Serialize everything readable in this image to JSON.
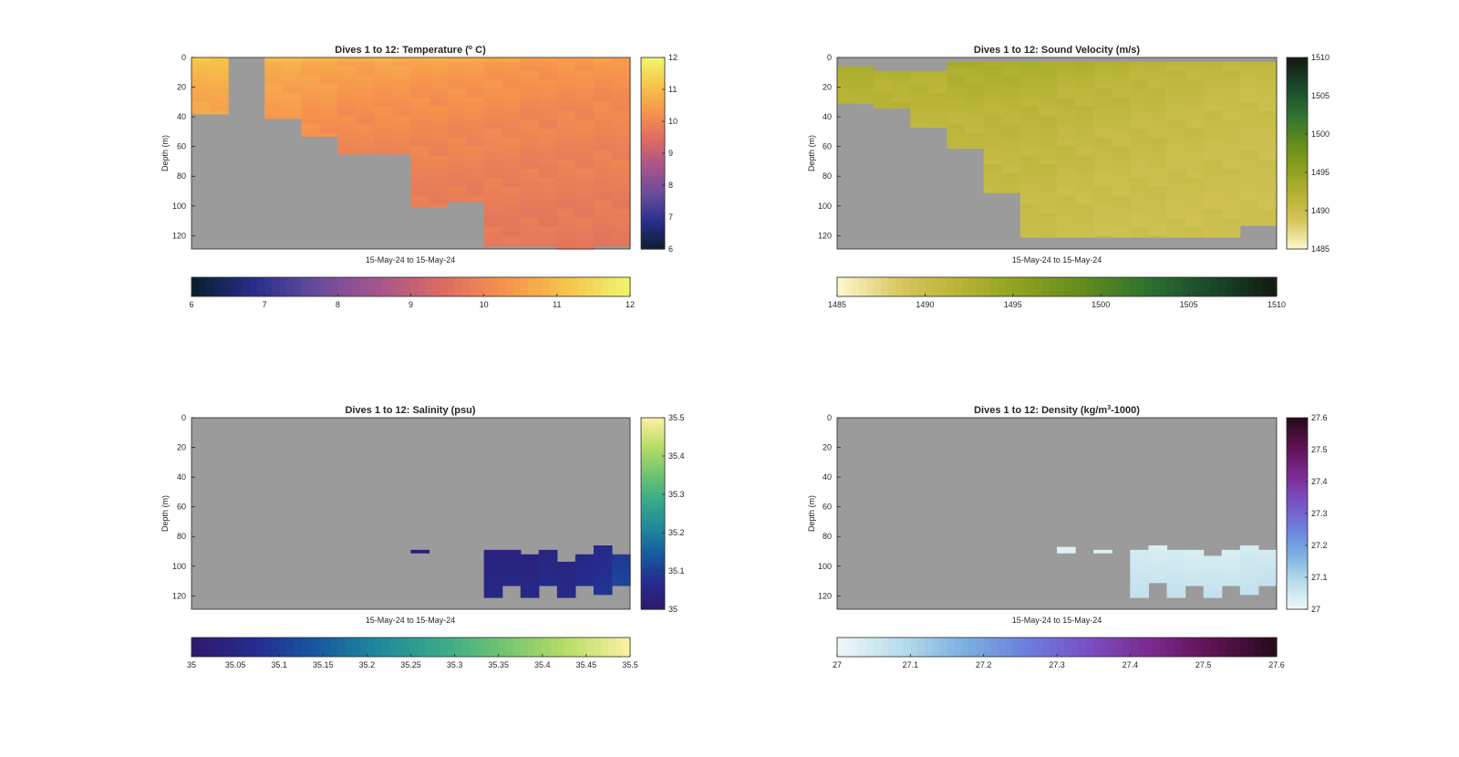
{
  "figure": {
    "background": "#ffffff",
    "nodata_color": "#9b9b9b",
    "depth_ticks": [
      "0",
      "20",
      "40",
      "60",
      "80",
      "100",
      "120"
    ]
  },
  "chart_data": [
    {
      "type": "heatmap",
      "id": "temperature",
      "title_main": "Dives 1 to 12: Temperature (",
      "title_sup": "o",
      "title_end": " C)",
      "ylabel": "Depth (m)",
      "xlabel": "15-May-24 to 15-May-24",
      "x": [
        1,
        2,
        3,
        4,
        5,
        6,
        7,
        8,
        9,
        10,
        11,
        12
      ],
      "ylim": [
        0,
        129
      ],
      "clim": [
        6,
        12
      ],
      "colorbar_ticks": [
        "6",
        "7",
        "8",
        "9",
        "10",
        "11",
        "12"
      ],
      "colormap": [
        "#0b1f33",
        "#2a2f8c",
        "#6a4c9c",
        "#a7558a",
        "#dc6a63",
        "#f6924d",
        "#f6c24a",
        "#eef46a"
      ],
      "profiles": [
        {
          "dive": 1,
          "max_depth": 38,
          "surface": 11.2,
          "bottom": 10.6
        },
        {
          "dive": 2,
          "max_depth": 0,
          "surface": 11.2,
          "bottom": 10.6
        },
        {
          "dive": 3,
          "max_depth": 41,
          "surface": 11.0,
          "bottom": 10.4
        },
        {
          "dive": 4,
          "max_depth": 53,
          "surface": 10.9,
          "bottom": 10.2
        },
        {
          "dive": 5,
          "max_depth": 65,
          "surface": 10.8,
          "bottom": 10.0
        },
        {
          "dive": 6,
          "max_depth": 65,
          "surface": 10.8,
          "bottom": 10.0
        },
        {
          "dive": 7,
          "max_depth": 101,
          "surface": 10.7,
          "bottom": 9.8
        },
        {
          "dive": 8,
          "max_depth": 97,
          "surface": 10.7,
          "bottom": 9.8
        },
        {
          "dive": 9,
          "max_depth": 127,
          "surface": 10.6,
          "bottom": 9.7
        },
        {
          "dive": 10,
          "max_depth": 127,
          "surface": 10.5,
          "bottom": 9.7
        },
        {
          "dive": 11,
          "max_depth": 129,
          "surface": 10.5,
          "bottom": 9.7
        },
        {
          "dive": 12,
          "max_depth": 127,
          "surface": 10.5,
          "bottom": 9.7
        }
      ]
    },
    {
      "type": "heatmap",
      "id": "sound-velocity",
      "title_main": "Dives 1 to 12: Sound Velocity (m/s)",
      "title_sup": "",
      "title_end": "",
      "ylabel": "Depth (m)",
      "xlabel": "15-May-24 to 15-May-24",
      "x": [
        1,
        2,
        3,
        4,
        5,
        6,
        7,
        8,
        9,
        10,
        11,
        12
      ],
      "ylim": [
        0,
        129
      ],
      "clim": [
        1485,
        1510
      ],
      "colorbar_ticks": [
        "1485",
        "1490",
        "1495",
        "1500",
        "1505",
        "1510"
      ],
      "colormap": [
        "#fbf6c8",
        "#d7c55c",
        "#b4b232",
        "#8a9f1e",
        "#5f8a1e",
        "#2c7030",
        "#19482b",
        "#151c12"
      ],
      "profiles": [
        {
          "dive": 1,
          "min_depth": 6,
          "max_depth": 31,
          "surface": 1492.8,
          "bottom": 1492.0
        },
        {
          "dive": 2,
          "min_depth": 9,
          "max_depth": 34,
          "surface": 1492.5,
          "bottom": 1491.6
        },
        {
          "dive": 3,
          "min_depth": 9,
          "max_depth": 47,
          "surface": 1492.3,
          "bottom": 1491.2
        },
        {
          "dive": 4,
          "min_depth": 3,
          "max_depth": 61,
          "surface": 1493.6,
          "bottom": 1490.8
        },
        {
          "dive": 5,
          "min_depth": 3,
          "max_depth": 91,
          "surface": 1493.3,
          "bottom": 1490.4
        },
        {
          "dive": 6,
          "min_depth": 3,
          "max_depth": 121,
          "surface": 1493.0,
          "bottom": 1490.0
        },
        {
          "dive": 7,
          "min_depth": 3,
          "max_depth": 121,
          "surface": 1492.6,
          "bottom": 1489.8
        },
        {
          "dive": 8,
          "min_depth": 3,
          "max_depth": 121,
          "surface": 1492.3,
          "bottom": 1489.6
        },
        {
          "dive": 9,
          "min_depth": 3,
          "max_depth": 121,
          "surface": 1491.9,
          "bottom": 1489.6
        },
        {
          "dive": 10,
          "min_depth": 3,
          "max_depth": 121,
          "surface": 1491.5,
          "bottom": 1489.5
        },
        {
          "dive": 11,
          "min_depth": 3,
          "max_depth": 121,
          "surface": 1491.1,
          "bottom": 1489.5
        },
        {
          "dive": 12,
          "min_depth": 3,
          "max_depth": 113,
          "surface": 1490.8,
          "bottom": 1489.5
        }
      ]
    },
    {
      "type": "heatmap",
      "id": "salinity",
      "title_main": "Dives 1 to 12: Salinity (psu)",
      "title_sup": "",
      "title_end": "",
      "ylabel": "Depth (m)",
      "xlabel": "15-May-24 to 15-May-24",
      "x": [
        1,
        2,
        3,
        4,
        5,
        6,
        7,
        8,
        9,
        10,
        11,
        12
      ],
      "ylim": [
        0,
        129
      ],
      "clim": [
        35,
        35.5
      ],
      "colorbar_ticks": [
        "35",
        "35.05",
        "35.1",
        "35.15",
        "35.2",
        "35.25",
        "35.3",
        "35.35",
        "35.4",
        "35.45",
        "35.5"
      ],
      "side_ticks": [
        "35",
        "35.1",
        "35.2",
        "35.3",
        "35.4",
        "35.5"
      ],
      "colormap": [
        "#2e1a6e",
        "#242d8f",
        "#175aa0",
        "#1f8a9a",
        "#3aa98a",
        "#72c471",
        "#b6dd66",
        "#f8efa0"
      ],
      "patches": [
        {
          "x0": 7,
          "x1": 7.5,
          "d0": 89,
          "d1": 91,
          "value": 35.02
        },
        {
          "x0": 9,
          "x1": 9.5,
          "d0": 89,
          "d1": 121,
          "value": 35.03
        },
        {
          "x0": 9.5,
          "x1": 10,
          "d0": 89,
          "d1": 113,
          "value": 35.03
        },
        {
          "x0": 10,
          "x1": 10.5,
          "d0": 92,
          "d1": 121,
          "value": 35.03
        },
        {
          "x0": 10.5,
          "x1": 11,
          "d0": 89,
          "d1": 113,
          "value": 35.04
        },
        {
          "x0": 11,
          "x1": 11.5,
          "d0": 97,
          "d1": 121,
          "value": 35.04
        },
        {
          "x0": 11.5,
          "x1": 12,
          "d0": 92,
          "d1": 113,
          "value": 35.05
        },
        {
          "x0": 12,
          "x1": 12.5,
          "d0": 86,
          "d1": 119,
          "value": 35.06
        },
        {
          "x0": 12.5,
          "x1": 13,
          "d0": 92,
          "d1": 113,
          "value": 35.09
        }
      ]
    },
    {
      "type": "heatmap",
      "id": "density",
      "title_main": "Dives 1 to 12: Density (kg/m",
      "title_sup": "3",
      "title_end": "-1000)",
      "ylabel": "Depth (m)",
      "xlabel": "15-May-24 to 15-May-24",
      "x": [
        1,
        2,
        3,
        4,
        5,
        6,
        7,
        8,
        9,
        10,
        11,
        12
      ],
      "ylim": [
        0,
        129
      ],
      "clim": [
        27,
        27.6
      ],
      "colorbar_ticks": [
        "27",
        "27.1",
        "27.2",
        "27.3",
        "27.4",
        "27.5",
        "27.6"
      ],
      "colormap": [
        "#eef6f7",
        "#b6dcea",
        "#7ab0e0",
        "#6b7fdc",
        "#7a4fc4",
        "#7b2a8e",
        "#5e1252",
        "#2a0a1e"
      ],
      "patches": [
        {
          "x0": 7,
          "x1": 7.5,
          "d0": 87,
          "d1": 91,
          "value": 27.02
        },
        {
          "x0": 8,
          "x1": 8.5,
          "d0": 89,
          "d1": 91,
          "value": 27.02
        },
        {
          "x0": 9,
          "x1": 9.5,
          "d0": 89,
          "d1": 121,
          "value": 27.04
        },
        {
          "x0": 9.5,
          "x1": 10,
          "d0": 86,
          "d1": 111,
          "value": 27.03
        },
        {
          "x0": 10,
          "x1": 10.5,
          "d0": 89,
          "d1": 121,
          "value": 27.04
        },
        {
          "x0": 10.5,
          "x1": 11,
          "d0": 89,
          "d1": 113,
          "value": 27.03
        },
        {
          "x0": 11,
          "x1": 11.5,
          "d0": 93,
          "d1": 121,
          "value": 27.04
        },
        {
          "x0": 11.5,
          "x1": 12,
          "d0": 89,
          "d1": 113,
          "value": 27.03
        },
        {
          "x0": 12,
          "x1": 12.5,
          "d0": 86,
          "d1": 119,
          "value": 27.04
        },
        {
          "x0": 12.5,
          "x1": 13,
          "d0": 89,
          "d1": 113,
          "value": 27.04
        }
      ]
    }
  ]
}
